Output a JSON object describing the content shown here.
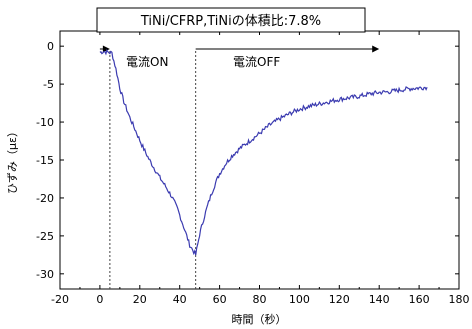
{
  "chart_data": {
    "type": "line",
    "title": "TiNi/CFRP,TiNiの体積比:7.8%",
    "xlabel": "時間（秒）",
    "ylabel": "ひずみ（με）",
    "xlim": [
      -20,
      180
    ],
    "ylim": [
      -32,
      2
    ],
    "x_ticks": [
      -20,
      0,
      20,
      40,
      60,
      80,
      100,
      120,
      140,
      160,
      180
    ],
    "y_ticks": [
      0,
      -5,
      -10,
      -15,
      -20,
      -25,
      -30
    ],
    "grid": false,
    "series_color": "#3b3bb0",
    "series": [
      {
        "x": [
          0,
          2,
          4,
          6,
          8,
          10,
          12,
          15,
          18,
          21,
          24,
          27,
          30,
          33,
          36,
          39,
          42,
          45,
          48,
          50,
          52,
          54,
          56,
          58,
          60,
          63,
          66,
          70,
          75,
          80,
          85,
          90,
          95,
          100,
          105,
          110,
          115,
          120,
          125,
          130,
          135,
          140,
          145,
          150,
          155,
          160,
          164
        ],
        "y": [
          -0.8,
          -0.7,
          -0.8,
          -0.9,
          -3.0,
          -5.5,
          -7.3,
          -9.4,
          -11.2,
          -13.0,
          -14.6,
          -16.0,
          -17.3,
          -18.5,
          -19.8,
          -21.5,
          -23.8,
          -26.2,
          -27.5,
          -24.8,
          -22.8,
          -21.0,
          -19.4,
          -18.0,
          -16.8,
          -15.5,
          -14.5,
          -13.5,
          -12.5,
          -11.5,
          -10.4,
          -9.6,
          -8.9,
          -8.3,
          -7.9,
          -7.6,
          -7.3,
          -7.0,
          -6.8,
          -6.6,
          -6.3,
          -6.1,
          -6.0,
          -5.8,
          -5.6,
          -5.5,
          -5.4
        ]
      }
    ],
    "annotations": {
      "on_label": "電流ON",
      "off_label": "電流OFF",
      "on_start": 0,
      "on_end": 5,
      "off_start": 48,
      "off_end": 140
    }
  }
}
